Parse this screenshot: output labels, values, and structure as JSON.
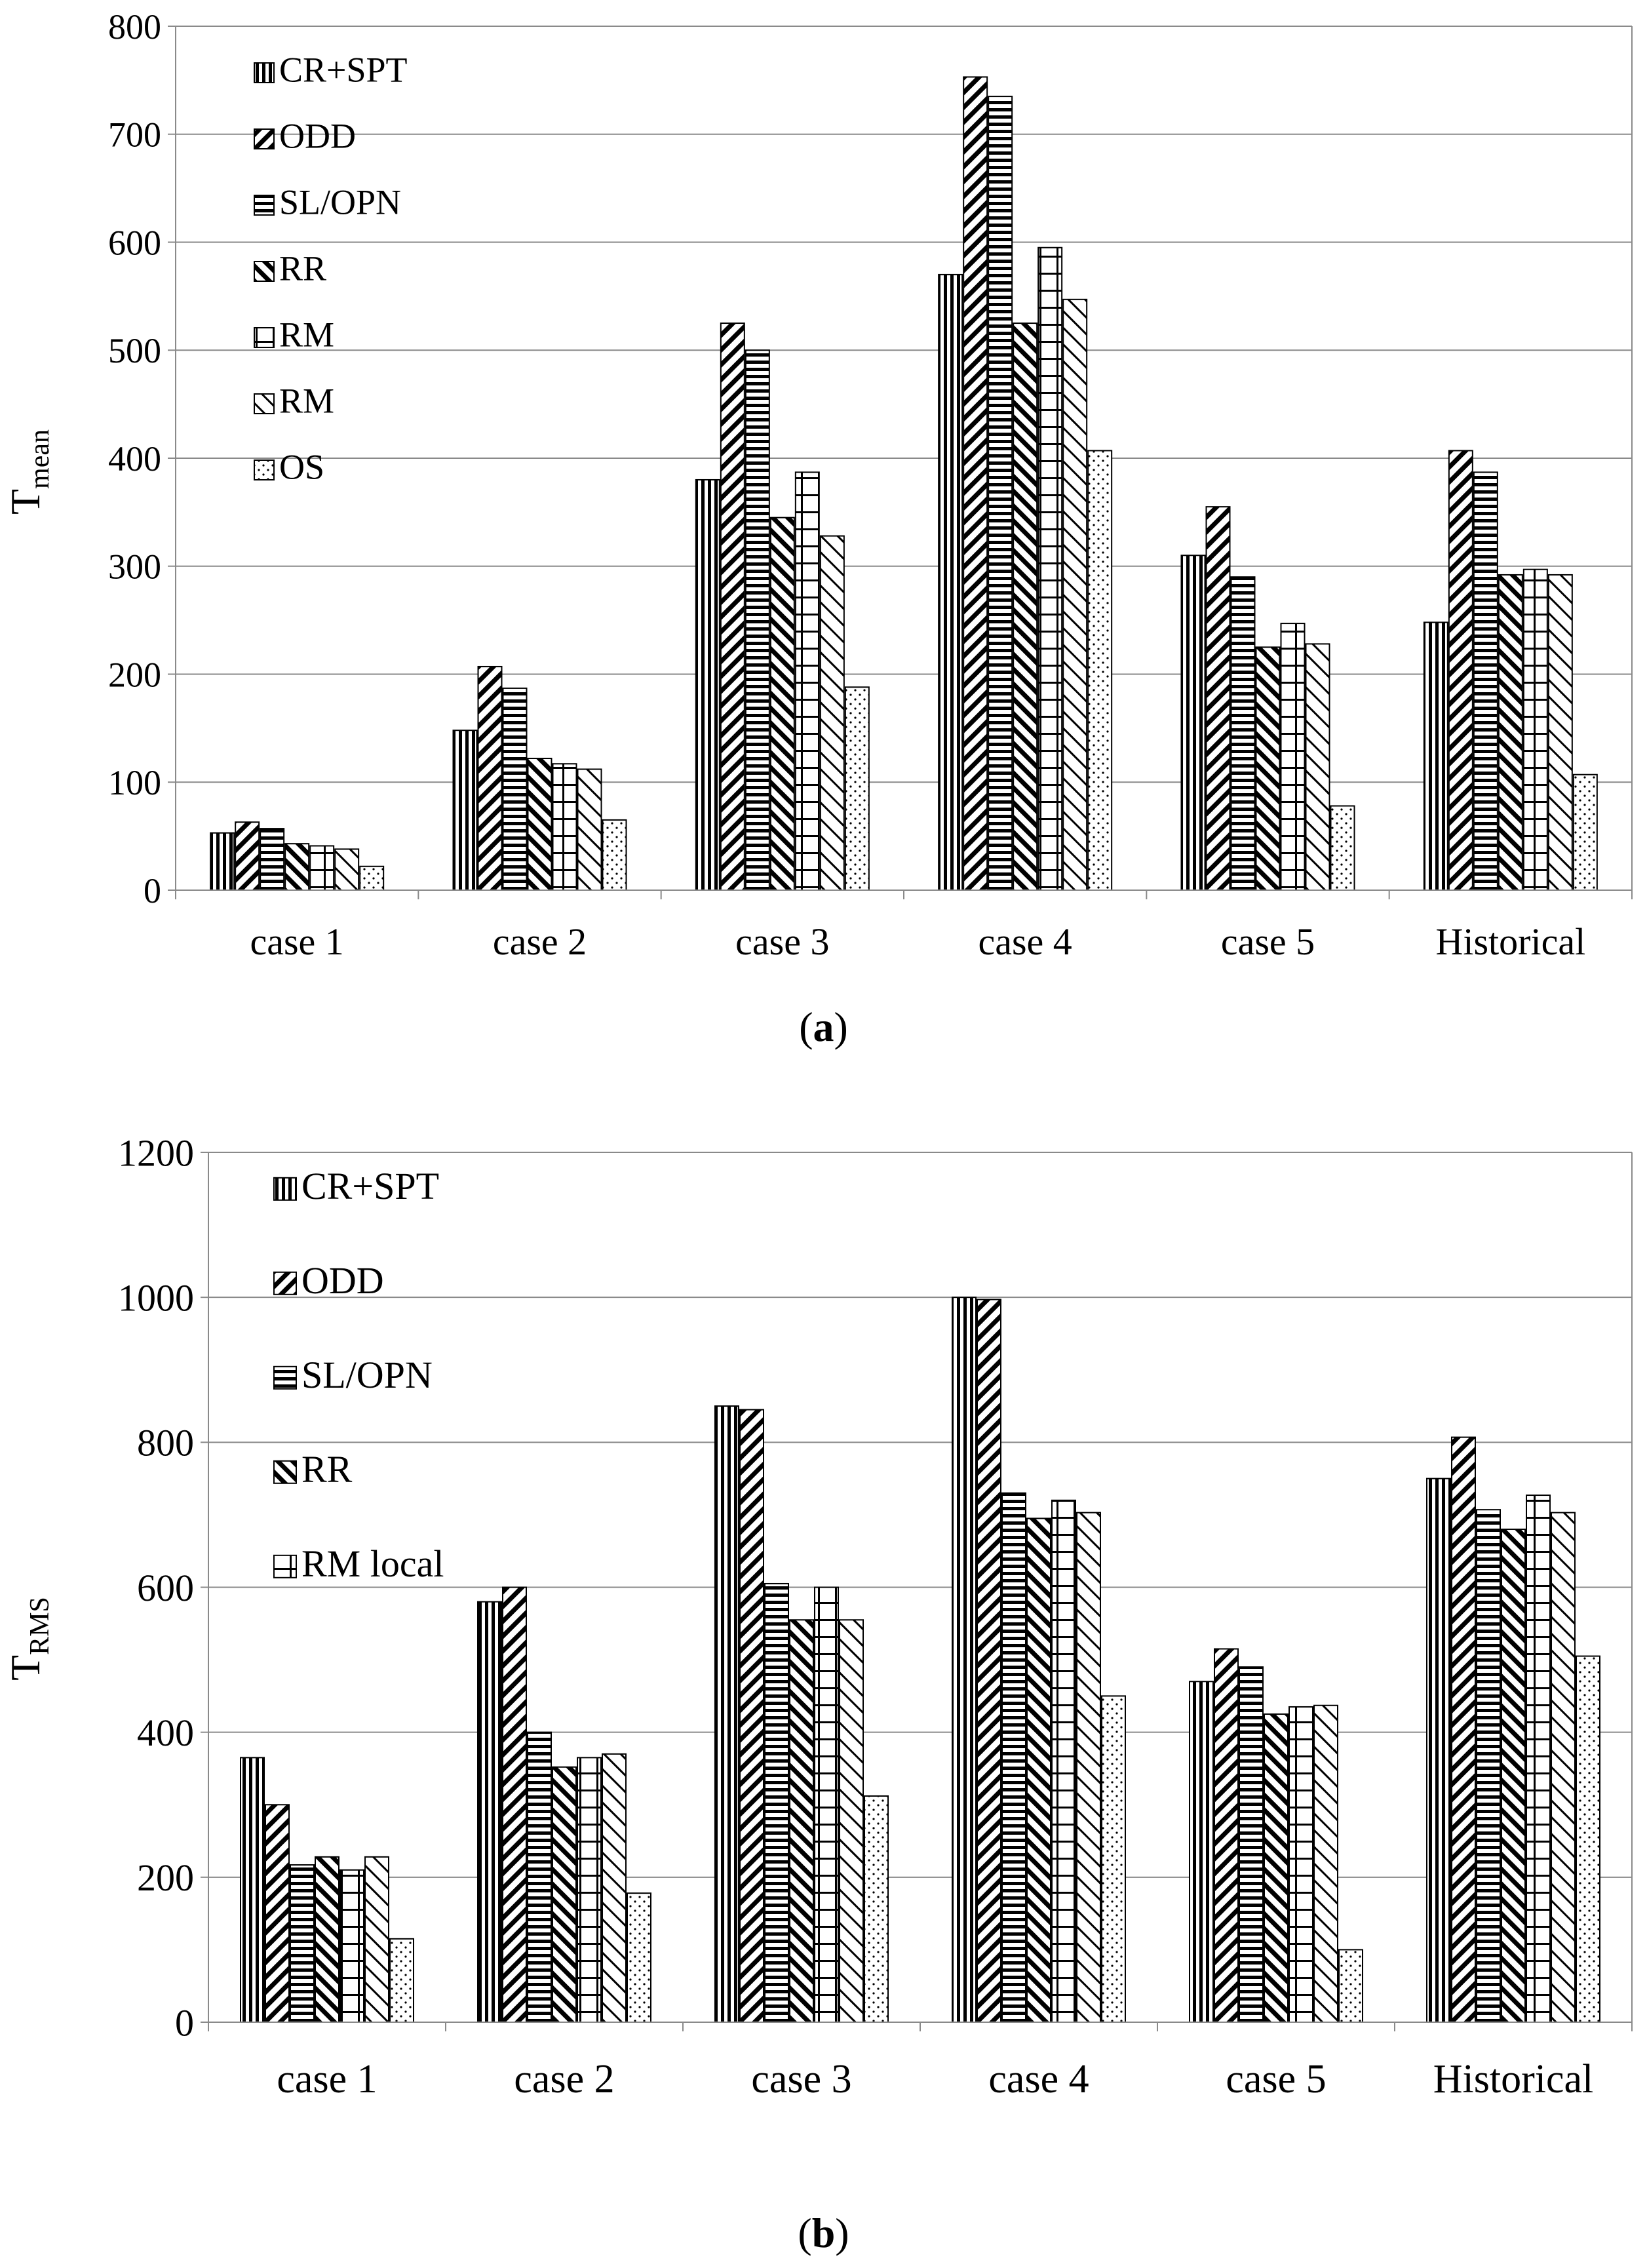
{
  "chart_data": [
    {
      "type": "bar",
      "panel_label": "a",
      "ylabel": "T",
      "ylabel_sub": "mean",
      "ylim": [
        0,
        800
      ],
      "yticks": [
        "0",
        "100",
        "200",
        "300",
        "400",
        "500",
        "600",
        "700",
        "800"
      ],
      "grid": true,
      "legend_position": "top-left",
      "categories": [
        "case 1",
        "case 2",
        "case 3",
        "case 4",
        "case 5",
        "Historical"
      ],
      "series": [
        {
          "name": "CR+SPT",
          "pattern": "vertical",
          "in_legend": true,
          "values": [
            53,
            148,
            380,
            570,
            310,
            248
          ]
        },
        {
          "name": "ODD",
          "pattern": "diag-up",
          "in_legend": true,
          "values": [
            63,
            207,
            525,
            753,
            355,
            407
          ]
        },
        {
          "name": "SL/OPN",
          "pattern": "horizontal",
          "in_legend": true,
          "values": [
            57,
            187,
            500,
            735,
            290,
            387
          ]
        },
        {
          "name": "RR",
          "pattern": "diag-down",
          "in_legend": true,
          "values": [
            43,
            122,
            345,
            525,
            225,
            292
          ]
        },
        {
          "name": "RM",
          "pattern": "grid",
          "in_legend": true,
          "values": [
            41,
            117,
            387,
            595,
            247,
            297
          ]
        },
        {
          "name": "RM",
          "pattern": "diag-down-light",
          "in_legend": true,
          "values": [
            38,
            112,
            328,
            547,
            228,
            292
          ]
        },
        {
          "name": "OS",
          "pattern": "dots",
          "in_legend": true,
          "values": [
            22,
            65,
            188,
            407,
            78,
            107
          ]
        }
      ]
    },
    {
      "type": "bar",
      "panel_label": "b",
      "ylabel": "T",
      "ylabel_sub": "RMS",
      "ylim": [
        0,
        1200
      ],
      "yticks": [
        "0",
        "200",
        "400",
        "600",
        "800",
        "1000",
        "1200"
      ],
      "grid": true,
      "legend_position": "top-left",
      "categories": [
        "case 1",
        "case 2",
        "case 3",
        "case 4",
        "case 5",
        "Historical"
      ],
      "series": [
        {
          "name": "CR+SPT",
          "pattern": "vertical",
          "in_legend": true,
          "values": [
            365,
            580,
            850,
            1000,
            470,
            750
          ]
        },
        {
          "name": "ODD",
          "pattern": "diag-up",
          "in_legend": true,
          "values": [
            300,
            600,
            845,
            997,
            515,
            807
          ]
        },
        {
          "name": "SL/OPN",
          "pattern": "horizontal",
          "in_legend": true,
          "values": [
            217,
            400,
            605,
            730,
            490,
            707
          ]
        },
        {
          "name": "RR",
          "pattern": "diag-down",
          "in_legend": true,
          "values": [
            228,
            352,
            555,
            695,
            425,
            680
          ]
        },
        {
          "name": "RM local",
          "pattern": "grid",
          "in_legend": true,
          "values": [
            210,
            365,
            600,
            720,
            435,
            727
          ]
        },
        {
          "name": "",
          "pattern": "diag-down-light",
          "in_legend": false,
          "values": [
            228,
            370,
            555,
            703,
            437,
            703
          ]
        },
        {
          "name": "",
          "pattern": "dots",
          "in_legend": false,
          "values": [
            115,
            178,
            312,
            450,
            100,
            505
          ]
        }
      ]
    }
  ],
  "captions": {
    "a": "a",
    "b": "b"
  }
}
